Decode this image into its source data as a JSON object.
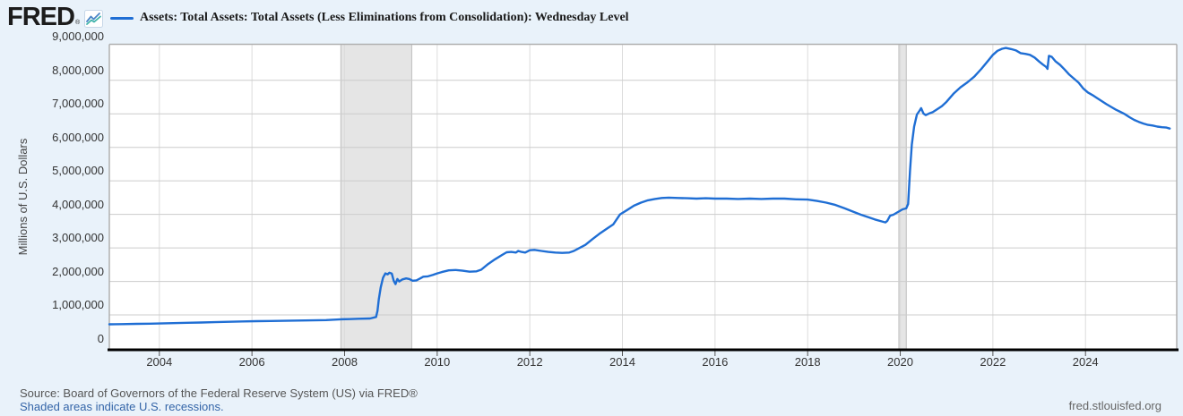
{
  "header": {
    "logo_text": "FRED",
    "logo_registered": "®",
    "legend_label": "Assets: Total Assets: Total Assets (Less Eliminations from Consolidation): Wednesday Level"
  },
  "footer": {
    "source": "Source: Board of Governors of the Federal Reserve System (US) via FRED®",
    "recession_note": "Shaded areas indicate U.S. recessions.",
    "site": "fred.stlouisfed.org"
  },
  "colors": {
    "background": "#e9f2fa",
    "plot_bg": "#ffffff",
    "series": "#1f6ed4",
    "grid": "#cccccc",
    "vgrid": "#dcdcdc",
    "plot_border": "#b0b0b0",
    "axis": "#000000",
    "tick": "#555555",
    "recession_fill": "#e5e5e5",
    "recession_edge": "#bdbdbd",
    "link": "#3465a8"
  },
  "chart_data": {
    "type": "line",
    "title": "Assets: Total Assets: Total Assets (Less Eliminations from Consolidation): Wednesday Level",
    "xlabel": "",
    "ylabel": "Millions of U.S. Dollars",
    "x_range": [
      2002.92,
      2025.97
    ],
    "ylim": [
      0,
      9000000
    ],
    "grid": true,
    "legend_position": "top",
    "yticks": [
      {
        "v": 0,
        "label": "0"
      },
      {
        "v": 1000000,
        "label": "1,000,000"
      },
      {
        "v": 2000000,
        "label": "2,000,000"
      },
      {
        "v": 3000000,
        "label": "3,000,000"
      },
      {
        "v": 4000000,
        "label": "4,000,000"
      },
      {
        "v": 5000000,
        "label": "5,000,000"
      },
      {
        "v": 6000000,
        "label": "6,000,000"
      },
      {
        "v": 7000000,
        "label": "7,000,000"
      },
      {
        "v": 8000000,
        "label": "8,000,000"
      },
      {
        "v": 9000000,
        "label": "9,000,000"
      }
    ],
    "xticks": [
      {
        "v": 2004,
        "label": "2004"
      },
      {
        "v": 2006,
        "label": "2006"
      },
      {
        "v": 2008,
        "label": "2008"
      },
      {
        "v": 2010,
        "label": "2010"
      },
      {
        "v": 2012,
        "label": "2012"
      },
      {
        "v": 2014,
        "label": "2014"
      },
      {
        "v": 2016,
        "label": "2016"
      },
      {
        "v": 2018,
        "label": "2018"
      },
      {
        "v": 2020,
        "label": "2020"
      },
      {
        "v": 2022,
        "label": "2022"
      },
      {
        "v": 2024,
        "label": "2024"
      }
    ],
    "recessions": [
      {
        "start": 2007.92,
        "end": 2009.45
      },
      {
        "start": 2019.97,
        "end": 2020.13
      }
    ],
    "series": [
      {
        "name": "Assets: Total Assets: Total Assets (Less Eliminations from Consolidation): Wednesday Level",
        "color": "#1f6ed4",
        "points": [
          [
            2002.92,
            720000
          ],
          [
            2003.2,
            725000
          ],
          [
            2003.5,
            735000
          ],
          [
            2003.8,
            740000
          ],
          [
            2004.0,
            745000
          ],
          [
            2004.3,
            755000
          ],
          [
            2004.6,
            765000
          ],
          [
            2004.9,
            775000
          ],
          [
            2005.2,
            785000
          ],
          [
            2005.5,
            795000
          ],
          [
            2005.8,
            805000
          ],
          [
            2006.1,
            815000
          ],
          [
            2006.4,
            820000
          ],
          [
            2006.7,
            825000
          ],
          [
            2007.0,
            832000
          ],
          [
            2007.3,
            838000
          ],
          [
            2007.6,
            845000
          ],
          [
            2007.92,
            870000
          ],
          [
            2008.1,
            875000
          ],
          [
            2008.3,
            885000
          ],
          [
            2008.55,
            895000
          ],
          [
            2008.68,
            940000
          ],
          [
            2008.71,
            1120000
          ],
          [
            2008.74,
            1470000
          ],
          [
            2008.78,
            1820000
          ],
          [
            2008.83,
            2110000
          ],
          [
            2008.88,
            2240000
          ],
          [
            2008.93,
            2210000
          ],
          [
            2008.97,
            2260000
          ],
          [
            2009.02,
            2230000
          ],
          [
            2009.06,
            2020000
          ],
          [
            2009.1,
            1920000
          ],
          [
            2009.14,
            2070000
          ],
          [
            2009.18,
            2000000
          ],
          [
            2009.25,
            2060000
          ],
          [
            2009.33,
            2090000
          ],
          [
            2009.4,
            2070000
          ],
          [
            2009.47,
            2020000
          ],
          [
            2009.55,
            2030000
          ],
          [
            2009.62,
            2080000
          ],
          [
            2009.7,
            2140000
          ],
          [
            2009.8,
            2150000
          ],
          [
            2009.9,
            2190000
          ],
          [
            2010.0,
            2240000
          ],
          [
            2010.1,
            2280000
          ],
          [
            2010.25,
            2330000
          ],
          [
            2010.4,
            2340000
          ],
          [
            2010.55,
            2320000
          ],
          [
            2010.7,
            2290000
          ],
          [
            2010.85,
            2300000
          ],
          [
            2010.95,
            2350000
          ],
          [
            2011.1,
            2520000
          ],
          [
            2011.25,
            2660000
          ],
          [
            2011.4,
            2790000
          ],
          [
            2011.5,
            2870000
          ],
          [
            2011.6,
            2880000
          ],
          [
            2011.7,
            2860000
          ],
          [
            2011.75,
            2910000
          ],
          [
            2011.82,
            2880000
          ],
          [
            2011.9,
            2860000
          ],
          [
            2012.0,
            2930000
          ],
          [
            2012.1,
            2940000
          ],
          [
            2012.25,
            2910000
          ],
          [
            2012.4,
            2880000
          ],
          [
            2012.55,
            2860000
          ],
          [
            2012.7,
            2850000
          ],
          [
            2012.85,
            2860000
          ],
          [
            2012.95,
            2910000
          ],
          [
            2013.05,
            2980000
          ],
          [
            2013.2,
            3090000
          ],
          [
            2013.35,
            3260000
          ],
          [
            2013.5,
            3420000
          ],
          [
            2013.65,
            3560000
          ],
          [
            2013.8,
            3700000
          ],
          [
            2013.95,
            4000000
          ],
          [
            2014.1,
            4130000
          ],
          [
            2014.25,
            4260000
          ],
          [
            2014.4,
            4350000
          ],
          [
            2014.55,
            4420000
          ],
          [
            2014.7,
            4460000
          ],
          [
            2014.85,
            4490000
          ],
          [
            2015.0,
            4500000
          ],
          [
            2015.2,
            4490000
          ],
          [
            2015.4,
            4480000
          ],
          [
            2015.6,
            4470000
          ],
          [
            2015.8,
            4480000
          ],
          [
            2016.0,
            4470000
          ],
          [
            2016.25,
            4470000
          ],
          [
            2016.5,
            4460000
          ],
          [
            2016.75,
            4470000
          ],
          [
            2017.0,
            4460000
          ],
          [
            2017.25,
            4470000
          ],
          [
            2017.5,
            4470000
          ],
          [
            2017.75,
            4450000
          ],
          [
            2018.0,
            4440000
          ],
          [
            2018.2,
            4400000
          ],
          [
            2018.4,
            4350000
          ],
          [
            2018.6,
            4280000
          ],
          [
            2018.8,
            4180000
          ],
          [
            2019.0,
            4070000
          ],
          [
            2019.15,
            3990000
          ],
          [
            2019.3,
            3920000
          ],
          [
            2019.45,
            3850000
          ],
          [
            2019.6,
            3790000
          ],
          [
            2019.68,
            3760000
          ],
          [
            2019.72,
            3810000
          ],
          [
            2019.78,
            3960000
          ],
          [
            2019.85,
            3990000
          ],
          [
            2019.95,
            4070000
          ],
          [
            2020.05,
            4150000
          ],
          [
            2020.13,
            4180000
          ],
          [
            2020.17,
            4310000
          ],
          [
            2020.21,
            5300000
          ],
          [
            2020.25,
            6080000
          ],
          [
            2020.3,
            6620000
          ],
          [
            2020.36,
            6980000
          ],
          [
            2020.42,
            7100000
          ],
          [
            2020.45,
            7170000
          ],
          [
            2020.5,
            7010000
          ],
          [
            2020.55,
            6960000
          ],
          [
            2020.62,
            7010000
          ],
          [
            2020.7,
            7050000
          ],
          [
            2020.8,
            7140000
          ],
          [
            2020.9,
            7230000
          ],
          [
            2021.0,
            7360000
          ],
          [
            2021.15,
            7600000
          ],
          [
            2021.3,
            7790000
          ],
          [
            2021.45,
            7940000
          ],
          [
            2021.6,
            8110000
          ],
          [
            2021.75,
            8340000
          ],
          [
            2021.9,
            8590000
          ],
          [
            2022.0,
            8760000
          ],
          [
            2022.1,
            8880000
          ],
          [
            2022.2,
            8940000
          ],
          [
            2022.28,
            8965000
          ],
          [
            2022.4,
            8930000
          ],
          [
            2022.5,
            8890000
          ],
          [
            2022.6,
            8810000
          ],
          [
            2022.7,
            8790000
          ],
          [
            2022.8,
            8760000
          ],
          [
            2022.9,
            8680000
          ],
          [
            2023.0,
            8560000
          ],
          [
            2023.08,
            8470000
          ],
          [
            2023.15,
            8400000
          ],
          [
            2023.18,
            8340000
          ],
          [
            2023.21,
            8730000
          ],
          [
            2023.27,
            8700000
          ],
          [
            2023.35,
            8570000
          ],
          [
            2023.45,
            8460000
          ],
          [
            2023.55,
            8320000
          ],
          [
            2023.65,
            8170000
          ],
          [
            2023.75,
            8050000
          ],
          [
            2023.85,
            7930000
          ],
          [
            2023.95,
            7760000
          ],
          [
            2024.05,
            7640000
          ],
          [
            2024.15,
            7560000
          ],
          [
            2024.25,
            7470000
          ],
          [
            2024.35,
            7380000
          ],
          [
            2024.45,
            7290000
          ],
          [
            2024.55,
            7210000
          ],
          [
            2024.65,
            7130000
          ],
          [
            2024.75,
            7060000
          ],
          [
            2024.85,
            6990000
          ],
          [
            2024.95,
            6900000
          ],
          [
            2025.05,
            6820000
          ],
          [
            2025.15,
            6760000
          ],
          [
            2025.25,
            6710000
          ],
          [
            2025.35,
            6670000
          ],
          [
            2025.45,
            6650000
          ],
          [
            2025.55,
            6620000
          ],
          [
            2025.65,
            6600000
          ],
          [
            2025.75,
            6590000
          ],
          [
            2025.82,
            6560000
          ]
        ]
      }
    ]
  }
}
